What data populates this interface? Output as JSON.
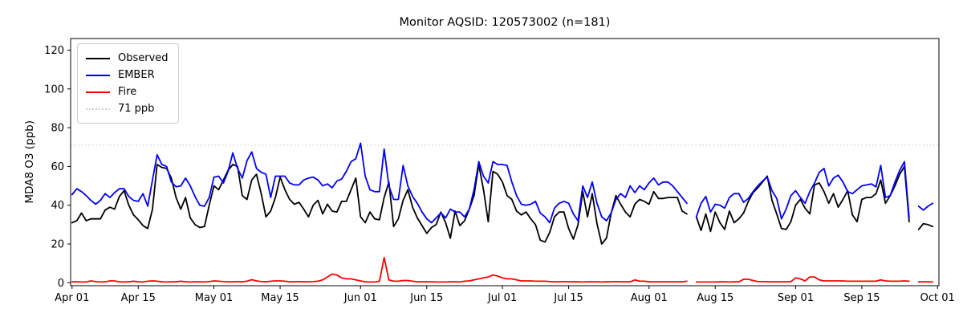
{
  "title": "Monitor AQSID: 120573002 (n=181)",
  "chart_data": {
    "type": "line",
    "title": "Monitor AQSID: 120573002 (n=181)",
    "ylabel": "MDA8 O3 (ppb)",
    "xlabel": "",
    "ylim": [
      0,
      120
    ],
    "yticks": [
      0,
      20,
      40,
      60,
      80,
      100,
      120
    ],
    "x_unit": "days, daily values from Apr 01 to Sep 30",
    "xticks": [
      {
        "day": 0,
        "label": "Apr 01"
      },
      {
        "day": 14,
        "label": "Apr 15"
      },
      {
        "day": 30,
        "label": "May 01"
      },
      {
        "day": 44,
        "label": "May 15"
      },
      {
        "day": 61,
        "label": "Jun 01"
      },
      {
        "day": 75,
        "label": "Jun 15"
      },
      {
        "day": 91,
        "label": "Jul 01"
      },
      {
        "day": 105,
        "label": "Jul 15"
      },
      {
        "day": 122,
        "label": "Aug 01"
      },
      {
        "day": 136,
        "label": "Aug 15"
      },
      {
        "day": 153,
        "label": "Sep 01"
      },
      {
        "day": 167,
        "label": "Sep 15"
      },
      {
        "day": 183,
        "label": "Oct 01"
      }
    ],
    "threshold": {
      "value": 71,
      "label": "71 ppb",
      "color": "#cfcfcf",
      "style": "dotted"
    },
    "legend": [
      "Observed",
      "EMBER",
      "Fire",
      "71 ppb"
    ],
    "legend_swatches": [
      {
        "color": "#000000",
        "style": "solid"
      },
      {
        "color": "#0000ff",
        "style": "solid"
      },
      {
        "color": "#ff0000",
        "style": "solid"
      },
      {
        "color": "#cfcfcf",
        "style": "dotted"
      }
    ],
    "series": [
      {
        "name": "Observed",
        "color": "#000000",
        "values": [
          31,
          32,
          36,
          32,
          33,
          33,
          33,
          37.5,
          39,
          38,
          44.5,
          47.5,
          40,
          35,
          32.5,
          29.5,
          28,
          38,
          61,
          59.5,
          59,
          54,
          44,
          38,
          44,
          33.5,
          30,
          28.5,
          29,
          40,
          50,
          48,
          53,
          58,
          61,
          60,
          45,
          43,
          53,
          56,
          46,
          34,
          37,
          44,
          54.5,
          48,
          43,
          40.5,
          41.5,
          38,
          34,
          40,
          42.5,
          35.5,
          40.5,
          37,
          36.5,
          42,
          42,
          48,
          54,
          34,
          31,
          36.5,
          33,
          32.5,
          44,
          52,
          29,
          33,
          42.5,
          48,
          39,
          33.5,
          29.5,
          25.5,
          28.5,
          30,
          36.5,
          31,
          23,
          37,
          29.5,
          32,
          38,
          45,
          61,
          48,
          31.5,
          57.5,
          56,
          52,
          45,
          43,
          37,
          35,
          36.5,
          33,
          30,
          22,
          21,
          26,
          34,
          36.5,
          36.5,
          28,
          22.5,
          30,
          47,
          34,
          46,
          30.5,
          20,
          23,
          36,
          45,
          40.5,
          36.5,
          34,
          40.5,
          43,
          42,
          40.5,
          47,
          43.5,
          43.5,
          44,
          44,
          44,
          37,
          35.5,
          null,
          34,
          27,
          35.5,
          26.5,
          36.5,
          31,
          27.5,
          37,
          31,
          33,
          36,
          42,
          46.5,
          49,
          52,
          55,
          42.5,
          35.5,
          28,
          27.5,
          31.5,
          40,
          43,
          38.5,
          35.5,
          50.5,
          51.5,
          47,
          41,
          46,
          39,
          43,
          47.5,
          35,
          31.5,
          43,
          44,
          44,
          46,
          53,
          41,
          45,
          50,
          56,
          60,
          31.5,
          null,
          27.5,
          30.5,
          30,
          29
        ]
      },
      {
        "name": "EMBER",
        "color": "#0000ff",
        "values": [
          45.5,
          48.5,
          47,
          45,
          42.5,
          40.5,
          42.5,
          46,
          44,
          46.5,
          48.5,
          48.5,
          44.5,
          42.5,
          42,
          46,
          39.5,
          53,
          66,
          61,
          60,
          52,
          49.5,
          50,
          54,
          50,
          44.5,
          40,
          39.5,
          44,
          54.5,
          55,
          51.5,
          57.5,
          67,
          59,
          54,
          63,
          67.5,
          59,
          57,
          56,
          44,
          55,
          55,
          55,
          51.5,
          50.5,
          50.5,
          53,
          54,
          54.5,
          53,
          50,
          51,
          49,
          52.5,
          53.5,
          57.5,
          62.5,
          64,
          72,
          55,
          48,
          47,
          47,
          69,
          50,
          43,
          43,
          60.5,
          50,
          44.5,
          41,
          36.5,
          33,
          31,
          33.5,
          36,
          33.5,
          38,
          36.5,
          36.5,
          34,
          38,
          48,
          62.5,
          55,
          51.5,
          62.5,
          61,
          61,
          60.5,
          52,
          45,
          40.5,
          40,
          40.5,
          42,
          36,
          34,
          31,
          38.5,
          41,
          42,
          41,
          35.5,
          32,
          50,
          44,
          52,
          41,
          34,
          32,
          36,
          43,
          46,
          44,
          50,
          46.5,
          50,
          48,
          51.5,
          54,
          50.5,
          52,
          52,
          50,
          47,
          44,
          41,
          null,
          34,
          41,
          44.5,
          36.5,
          40.5,
          40,
          38.5,
          44,
          46,
          46,
          41.5,
          43.5,
          47,
          50,
          52.5,
          54.5,
          47.5,
          43.5,
          33,
          38,
          45,
          47.5,
          44,
          41,
          47,
          51.5,
          57,
          59,
          50,
          54,
          55.5,
          52,
          47,
          46,
          48,
          50,
          50.5,
          51,
          49.5,
          60.5,
          44,
          45,
          52,
          58,
          62.5,
          33.5,
          null,
          39.5,
          37.5,
          39.5,
          41
        ]
      },
      {
        "name": "Fire",
        "color": "#ff0000",
        "values": [
          0.5,
          0.5,
          0.4,
          0.4,
          1,
          0.6,
          0.4,
          0.5,
          1,
          1,
          0.5,
          0.4,
          0.5,
          0.8,
          0.5,
          0.4,
          0.8,
          1,
          0.8,
          0.5,
          0.4,
          0.5,
          0.5,
          0.8,
          0.5,
          0.4,
          0.5,
          0.5,
          0.4,
          0.6,
          1,
          0.8,
          0.6,
          0.5,
          0.5,
          0.6,
          0.5,
          0.8,
          1.6,
          1,
          0.6,
          0.5,
          0.8,
          1,
          1,
          0.8,
          0.5,
          0.5,
          0.6,
          0.5,
          0.5,
          0.6,
          0.8,
          1.5,
          3,
          4.5,
          4,
          2.5,
          2,
          2,
          1.5,
          1,
          0.5,
          0.4,
          0.4,
          0.8,
          13,
          1.5,
          0.8,
          0.8,
          1.2,
          1.2,
          0.8,
          0.5,
          0.5,
          0.5,
          0.5,
          0.4,
          0.4,
          0.4,
          0.5,
          0.5,
          0.4,
          0.8,
          1,
          1.5,
          2,
          2.5,
          3,
          4,
          3.5,
          2.5,
          2,
          2,
          1.5,
          1,
          1,
          1,
          0.8,
          0.8,
          0.8,
          0.6,
          0.5,
          0.5,
          0.6,
          0.5,
          0.5,
          0.5,
          0.4,
          0.5,
          0.5,
          0.5,
          0.4,
          0.5,
          0.5,
          0.6,
          0.5,
          0.5,
          0.5,
          1.5,
          0.8,
          0.8,
          0.5,
          0.5,
          0.5,
          0.5,
          0.5,
          0.5,
          0.5,
          0.5,
          0.8,
          null,
          0.4,
          0.4,
          0.4,
          0.4,
          0.4,
          0.5,
          0.5,
          0.4,
          0.5,
          0.5,
          1.8,
          1.8,
          1.2,
          0.6,
          0.6,
          0.5,
          0.5,
          0.5,
          0.5,
          0.5,
          0.6,
          2.5,
          2,
          1,
          3,
          3,
          1.5,
          1,
          1,
          1,
          1,
          1,
          0.8,
          0.8,
          0.8,
          0.8,
          0.8,
          0.8,
          0.8,
          1.5,
          1,
          0.8,
          0.8,
          0.8,
          1,
          0.8,
          null,
          0.5,
          0.5,
          0.5,
          0.4
        ]
      }
    ]
  }
}
